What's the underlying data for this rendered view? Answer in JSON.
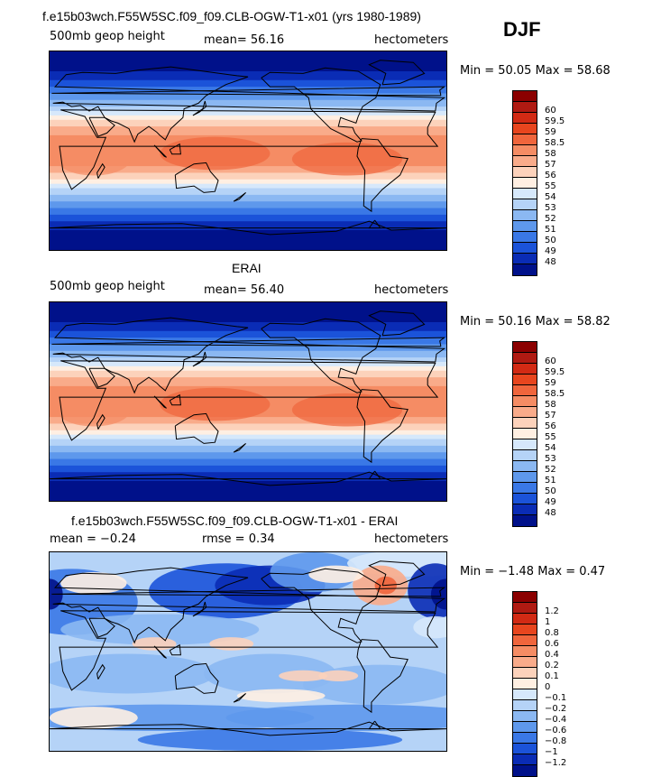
{
  "season": "DJF",
  "panels": [
    {
      "title": "f.e15b03wch.F55W5SC.f09_f09.CLB-OGW-T1-x01 (yrs 1980-1989)",
      "left_label": "500mb geop height",
      "center_label": "mean=  56.16",
      "units": "hectometers",
      "minmax": "Min =  50.05 Max =  58.68",
      "kind": "abs",
      "colorbar": {
        "colors": [
          "#8b0000",
          "#b01a12",
          "#d22a14",
          "#e8451e",
          "#f0653c",
          "#f58c64",
          "#f9ab8a",
          "#fcd2bb",
          "#ffefe2",
          "#d6e8fb",
          "#b5d3f7",
          "#8bb8f2",
          "#5e98ec",
          "#3a78e6",
          "#1b53d9",
          "#0a2cb5",
          "#00118a"
        ],
        "labels": [
          "60",
          "59.5",
          "59",
          "58.5",
          "58",
          "57",
          "56",
          "55",
          "54",
          "53",
          "52",
          "51",
          "50",
          "49",
          "48"
        ]
      }
    },
    {
      "title": "ERAI",
      "left_label": "500mb geop height",
      "center_label": "mean=  56.40",
      "units": "hectometers",
      "minmax": "Min =  50.16 Max =  58.82",
      "kind": "abs",
      "colorbar": {
        "colors": [
          "#8b0000",
          "#b01a12",
          "#d22a14",
          "#e8451e",
          "#f0653c",
          "#f58c64",
          "#f9ab8a",
          "#fcd2bb",
          "#ffefe2",
          "#d6e8fb",
          "#b5d3f7",
          "#8bb8f2",
          "#5e98ec",
          "#3a78e6",
          "#1b53d9",
          "#0a2cb5",
          "#00118a"
        ],
        "labels": [
          "60",
          "59.5",
          "59",
          "58.5",
          "58",
          "57",
          "56",
          "55",
          "54",
          "53",
          "52",
          "51",
          "50",
          "49",
          "48"
        ]
      }
    },
    {
      "title": "f.e15b03wch.F55W5SC.f09_f09.CLB-OGW-T1-x01 - ERAI",
      "left_label": "mean =   −0.24",
      "center_label": "rmse =   0.34",
      "units": "hectometers",
      "minmax": "Min =  −1.48 Max =   0.47",
      "kind": "diff",
      "colorbar": {
        "colors": [
          "#8b0000",
          "#b01a12",
          "#d22a14",
          "#e8451e",
          "#f0653c",
          "#f58c64",
          "#f9ab8a",
          "#fcd2bb",
          "#ffefe2",
          "#d6e8fb",
          "#b5d3f7",
          "#8bb8f2",
          "#5e98ec",
          "#3a78e6",
          "#1b53d9",
          "#0a2cb5",
          "#00118a"
        ],
        "labels": [
          "1.2",
          "1",
          "0.8",
          "0.6",
          "0.4",
          "0.2",
          "0.1",
          "0",
          "−0.1",
          "−0.2",
          "−0.4",
          "−0.6",
          "−0.8",
          "−1",
          "−1.2"
        ]
      }
    }
  ]
}
